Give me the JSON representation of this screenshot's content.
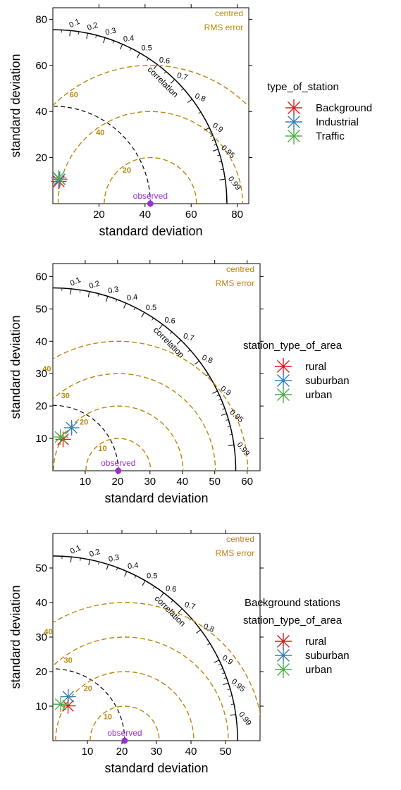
{
  "colors": {
    "rms": "#b8860b",
    "observed": "#9932cc",
    "ref_arc": "#000000",
    "series": [
      "#e41a1c",
      "#377eb8",
      "#4daf4a"
    ]
  },
  "chart_data": [
    {
      "type": "scatter",
      "subtype": "taylor-diagram",
      "xlabel": "standard deviation",
      "ylabel": "standard deviation",
      "x_ticks": [
        20,
        40,
        60,
        80
      ],
      "y_ticks": [
        20,
        40,
        60,
        80
      ],
      "axis_max": 85,
      "sd_max": 75.5,
      "observed_sd": 42.3,
      "observed_label": "observed",
      "rms_contours": [
        20,
        40,
        60
      ],
      "rms_title": [
        "centred",
        "RMS error"
      ],
      "correlation_label": "correlation",
      "correlation_ticks": [
        0.1,
        0.2,
        0.3,
        0.4,
        0.5,
        0.6,
        0.7,
        0.8,
        0.9,
        0.95,
        0.99
      ],
      "legend_title": [
        "type_of_station"
      ],
      "series": [
        {
          "name": "Background",
          "sd": 10.0,
          "cor": 0.26
        },
        {
          "name": "Industrial",
          "sd": 11.0,
          "cor": 0.27
        },
        {
          "name": "Traffic",
          "sd": 11.5,
          "cor": 0.22
        }
      ]
    },
    {
      "type": "scatter",
      "subtype": "taylor-diagram",
      "xlabel": "standard deviation",
      "ylabel": "standard deviation",
      "x_ticks": [
        10,
        20,
        30,
        40,
        50,
        60
      ],
      "y_ticks": [
        10,
        20,
        30,
        40,
        50,
        60
      ],
      "axis_max": 64,
      "sd_max": 56.5,
      "observed_sd": 20.2,
      "observed_label": "observed",
      "rms_contours": [
        10,
        20,
        30,
        40
      ],
      "rms_title": [
        "centred",
        "RMS error"
      ],
      "correlation_label": "correlation",
      "correlation_ticks": [
        0.1,
        0.2,
        0.3,
        0.4,
        0.5,
        0.6,
        0.7,
        0.8,
        0.9,
        0.95,
        0.99
      ],
      "legend_title": [
        "station_type_of_area"
      ],
      "series": [
        {
          "name": "rural",
          "sd": 10.2,
          "cor": 0.31
        },
        {
          "name": "suburban",
          "sd": 14.5,
          "cor": 0.4
        },
        {
          "name": "urban",
          "sd": 10.7,
          "cor": 0.22
        }
      ]
    },
    {
      "type": "scatter",
      "subtype": "taylor-diagram",
      "xlabel": "standard deviation",
      "ylabel": "standard deviation",
      "x_ticks": [
        10,
        20,
        30,
        40,
        50
      ],
      "y_ticks": [
        10,
        20,
        30,
        40,
        50
      ],
      "axis_max": 60,
      "sd_max": 53.5,
      "observed_sd": 20.8,
      "observed_label": "observed",
      "rms_contours": [
        10,
        20,
        30,
        40
      ],
      "rms_title": [
        "centred",
        "RMS error"
      ],
      "correlation_label": "correlation",
      "correlation_ticks": [
        0.1,
        0.2,
        0.3,
        0.4,
        0.5,
        0.6,
        0.7,
        0.8,
        0.9,
        0.95,
        0.99
      ],
      "legend_title": [
        "Background stations",
        "station_type_of_area"
      ],
      "series": [
        {
          "name": "rural",
          "sd": 11.0,
          "cor": 0.4
        },
        {
          "name": "suburban",
          "sd": 13.5,
          "cor": 0.33
        },
        {
          "name": "urban",
          "sd": 10.8,
          "cor": 0.21
        }
      ]
    }
  ]
}
